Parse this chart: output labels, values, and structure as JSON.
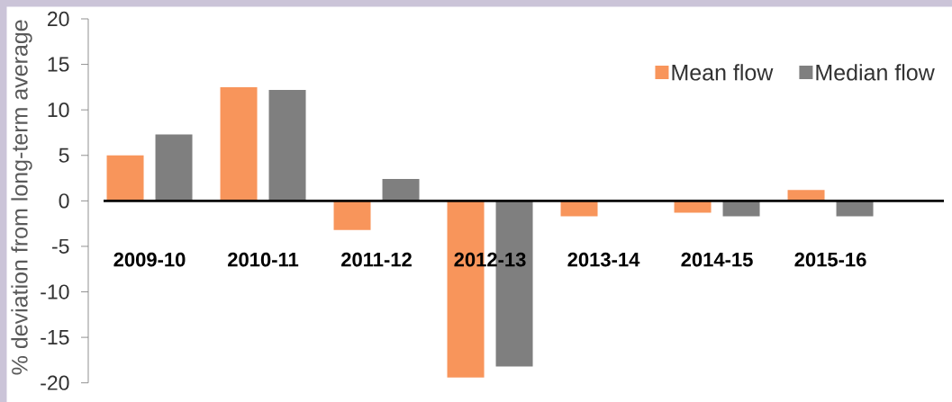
{
  "chart_data": {
    "type": "bar",
    "ylabel": "% deviation from long-term average",
    "categories": [
      "2009-10",
      "2010-11",
      "2011-12",
      "2012-13",
      "2013-14",
      "2014-15",
      "2015-16"
    ],
    "series": [
      {
        "name": "Mean flow",
        "color": "#f8955b",
        "values": [
          5.0,
          12.5,
          -3.2,
          -19.4,
          -1.7,
          -1.3,
          1.2
        ]
      },
      {
        "name": "Median flow",
        "color": "#7f7f7f",
        "values": [
          7.3,
          12.2,
          2.4,
          -18.2,
          null,
          -1.7,
          -1.7
        ]
      }
    ],
    "ylim": [
      -20,
      20
    ],
    "yticks": [
      -20,
      -15,
      -10,
      -5,
      0,
      5,
      10,
      15,
      20
    ],
    "legend": "top right"
  }
}
